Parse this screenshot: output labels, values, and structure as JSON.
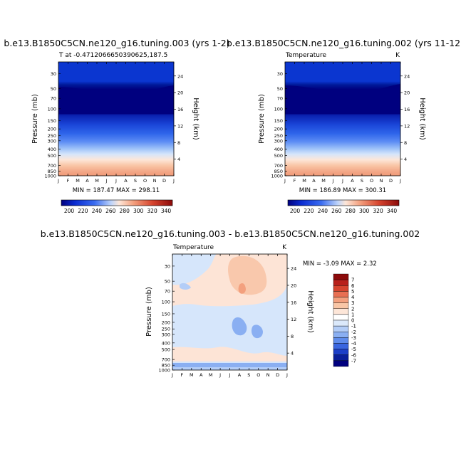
{
  "chart_data": [
    {
      "type": "heatmap",
      "title": "b.e13.B1850C5CN.ne120_g16.tuning.003 (yrs 1-2)",
      "subtitle_left": "T at -0.4712066650390625,187.5",
      "subtitle_right": "",
      "ylabel": "Pressure (mb)",
      "y2label": "Height (km)",
      "x_ticks": [
        "J",
        "F",
        "M",
        "A",
        "M",
        "J",
        "J",
        "A",
        "S",
        "O",
        "N",
        "D",
        "J"
      ],
      "y_ticks": [
        "30",
        "50",
        "70",
        "100",
        "150",
        "200",
        "250",
        "300",
        "400",
        "500",
        "700",
        "850",
        "1000"
      ],
      "y2_ticks": [
        "24",
        "20",
        "16",
        "12",
        "8",
        "4"
      ],
      "stats": "MIN = 187.47  MAX = 298.11",
      "colorbar_labels": [
        "200",
        "220",
        "240",
        "260",
        "280",
        "300",
        "320",
        "340"
      ],
      "colorbar_colors": [
        "#00007f",
        "#0a2bd0",
        "#1f4fe6",
        "#3a6cf0",
        "#5c8cf4",
        "#8fb4f7",
        "#bed4fa",
        "#e0ecfc",
        "#fde6d8",
        "#f9c6a6",
        "#f3a07e",
        "#e86f52",
        "#d6442e",
        "#b8201a",
        "#8c0a0a"
      ]
    },
    {
      "type": "heatmap",
      "title": "b.e13.B1850C5CN.ne120_g16.tuning.002 (yrs 11-12",
      "subtitle_left": "Temperature",
      "subtitle_right": "K",
      "ylabel": "Pressure (mb)",
      "y2label": "Height (km)",
      "x_ticks": [
        "J",
        "F",
        "M",
        "A",
        "M",
        "J",
        "J",
        "A",
        "S",
        "O",
        "N",
        "D",
        "J"
      ],
      "y_ticks": [
        "30",
        "50",
        "70",
        "100",
        "150",
        "200",
        "250",
        "300",
        "400",
        "500",
        "700",
        "850",
        "1000"
      ],
      "y2_ticks": [
        "24",
        "20",
        "16",
        "12",
        "8",
        "4"
      ],
      "stats": "MIN = 186.89  MAX = 300.31",
      "colorbar_labels": [
        "200",
        "220",
        "240",
        "260",
        "280",
        "300",
        "320",
        "340"
      ],
      "colorbar_colors": [
        "#00007f",
        "#0a2bd0",
        "#1f4fe6",
        "#3a6cf0",
        "#5c8cf4",
        "#8fb4f7",
        "#bed4fa",
        "#e0ecfc",
        "#fde6d8",
        "#f9c6a6",
        "#f3a07e",
        "#e86f52",
        "#d6442e",
        "#b8201a",
        "#8c0a0a"
      ]
    },
    {
      "type": "heatmap",
      "title": "b.e13.B1850C5CN.ne120_g16.tuning.003 - b.e13.B1850C5CN.ne120_g16.tuning.002",
      "subtitle_left": "Temperature",
      "subtitle_right": "K",
      "ylabel": "Pressure (mb)",
      "y2label": "Height (km)",
      "x_ticks": [
        "J",
        "F",
        "M",
        "A",
        "M",
        "J",
        "J",
        "A",
        "S",
        "O",
        "N",
        "D",
        "J"
      ],
      "y_ticks": [
        "30",
        "50",
        "70",
        "100",
        "150",
        "200",
        "250",
        "300",
        "400",
        "500",
        "700",
        "850",
        "1000"
      ],
      "y2_ticks": [
        "24",
        "20",
        "16",
        "12",
        "8",
        "4"
      ],
      "stats": "MIN = -3.09  MAX =   2.32",
      "colorbar_labels": [
        "7",
        "6",
        "5",
        "4",
        "3",
        "2",
        "1",
        "0",
        "-1",
        "-2",
        "-3",
        "-4",
        "-5",
        "-6",
        "-7"
      ],
      "colorbar_colors": [
        "#8c0a0a",
        "#b8201a",
        "#d6442e",
        "#e86f52",
        "#f3a07e",
        "#f9c6a6",
        "#fde6d8",
        "#ffffff",
        "#dbe9fb",
        "#b3cdf7",
        "#8aaff2",
        "#5f8cec",
        "#3a66e0",
        "#1c3fc8",
        "#0a1f9a",
        "#00007f"
      ]
    }
  ]
}
